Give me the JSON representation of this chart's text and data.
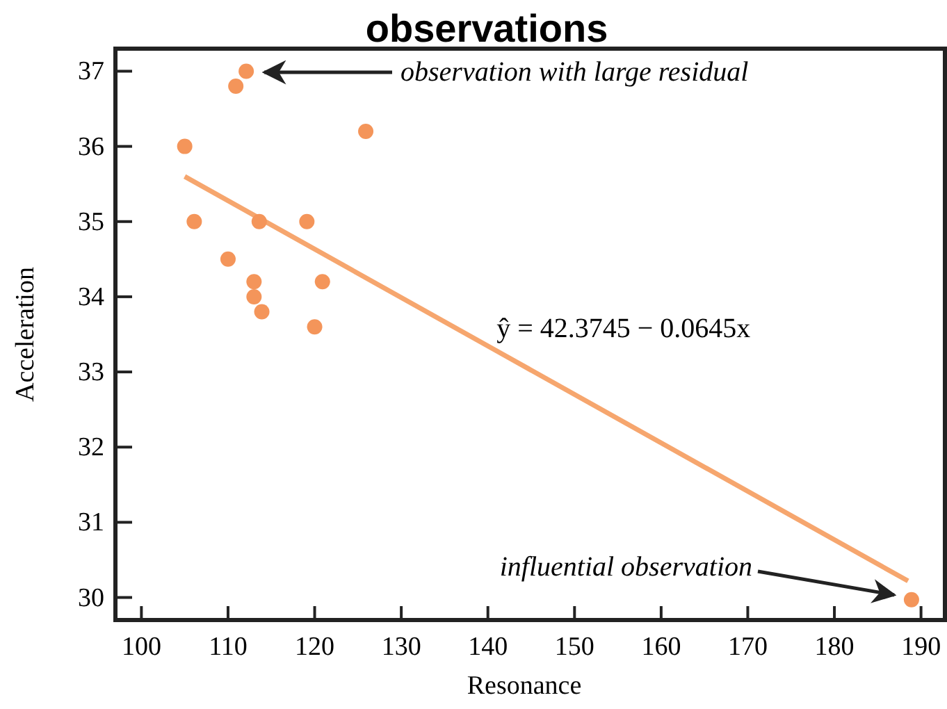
{
  "chart_data": {
    "type": "scatter",
    "title": "observations",
    "xlabel": "Resonance",
    "ylabel": "Acceleration",
    "xlim": [
      97,
      193
    ],
    "ylim": [
      29.7,
      37.3
    ],
    "xticks": [
      100,
      110,
      120,
      130,
      140,
      150,
      160,
      170,
      180,
      190
    ],
    "yticks": [
      30,
      31,
      32,
      33,
      34,
      35,
      36,
      37
    ],
    "grid": false,
    "series": [
      {
        "marker": "circle",
        "color": "#f4955a",
        "x": [
          112.1,
          110.9,
          125.9,
          105.0,
          106.1,
          113.6,
          119.1,
          110.0,
          113.0,
          120.9,
          113.0,
          113.9,
          120.0,
          188.9
        ],
        "values": [
          37.0,
          36.8,
          36.2,
          36.0,
          35.0,
          35.0,
          35.0,
          34.5,
          34.2,
          34.2,
          34.0,
          33.8,
          33.6,
          29.97
        ]
      },
      {
        "type": "line",
        "color": "#f6a66e",
        "x": [
          105,
          188.5
        ],
        "values": [
          35.6,
          30.22
        ]
      }
    ],
    "annotations": [
      "observation with large residual",
      {
        "text": "ŷ = 42.3745 − 0.0645x",
        "x": 141,
        "y": 33.28
      },
      "influential observation"
    ]
  }
}
